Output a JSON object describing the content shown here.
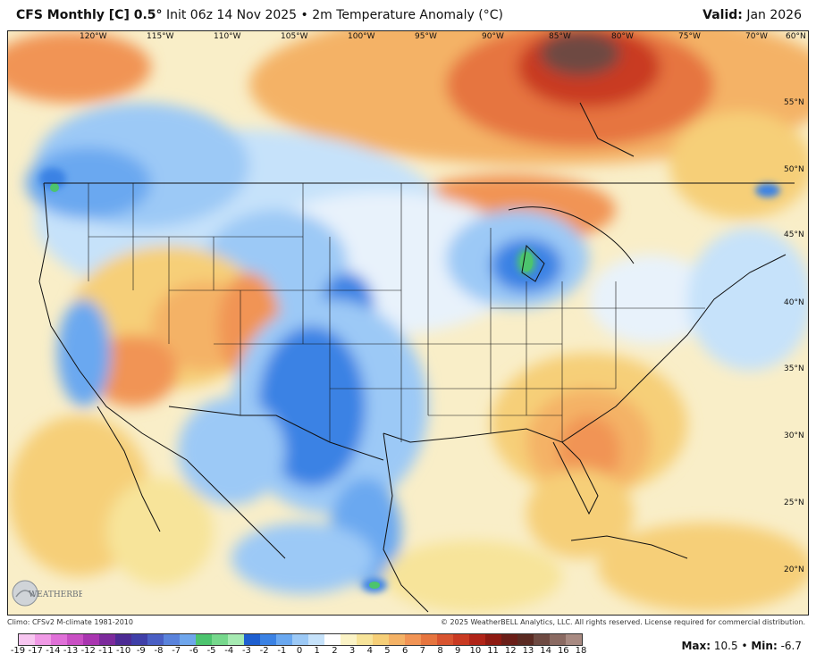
{
  "header": {
    "model": "CFS Monthly [C] 0.5",
    "degree": "°",
    "init": "Init 06z 14 Nov 2025",
    "bullet": "•",
    "field": "2m Temperature Anomaly (°C)",
    "valid_label": "Valid:",
    "valid_value": "Jan 2026"
  },
  "map": {
    "longitude_labels": [
      "120°W",
      "115°W",
      "110°W",
      "105°W",
      "100°W",
      "95°W",
      "90°W",
      "85°W",
      "80°W",
      "75°W",
      "70°W",
      "60°N"
    ],
    "latitude_labels": [
      "55°N",
      "50°N",
      "45°N",
      "40°N",
      "35°N",
      "30°N",
      "25°N",
      "20°N"
    ],
    "logo_text": "WEATHERBELL"
  },
  "footer": {
    "climo": "Climo: CFSv2 M-climate 1981-2010",
    "copyright": "© 2025 WeatherBELL Analytics, LLC. All rights reserved. License required for commercial distribution."
  },
  "legend": {
    "ticks": [
      "-19",
      "-17",
      "-14",
      "-13",
      "-12",
      "-11",
      "-10",
      "-9",
      "-8",
      "-7",
      "-6",
      "-5",
      "-4",
      "-3",
      "-2",
      "-1",
      "0",
      "1",
      "2",
      "3",
      "4",
      "5",
      "6",
      "7",
      "8",
      "9",
      "10",
      "11",
      "12",
      "13",
      "14",
      "16",
      "18"
    ],
    "colors": [
      "#f7c6f0",
      "#f09ae6",
      "#e070d8",
      "#c94fc4",
      "#a935b0",
      "#7c2a9c",
      "#4c2b94",
      "#3f3fa8",
      "#4a5fc4",
      "#5a83dc",
      "#6fa6ec",
      "#4cc46e",
      "#76d88c",
      "#a6eab2",
      "#1e5fd0",
      "#3b82e4",
      "#6aa8f0",
      "#9cc9f6",
      "#c6e2fa",
      "#ffffff",
      "#fbf3c6",
      "#f7e49a",
      "#f6cf78",
      "#f4b266",
      "#f19455",
      "#e6753f",
      "#d85430",
      "#c93a22",
      "#b02418",
      "#8e1a12",
      "#6a1e18",
      "#5a2a22",
      "#6e4a42",
      "#8a6a62",
      "#a88a82"
    ],
    "max_label": "Max:",
    "max_value": "10.5",
    "sep": "•",
    "min_label": "Min:",
    "min_value": "-6.7"
  }
}
